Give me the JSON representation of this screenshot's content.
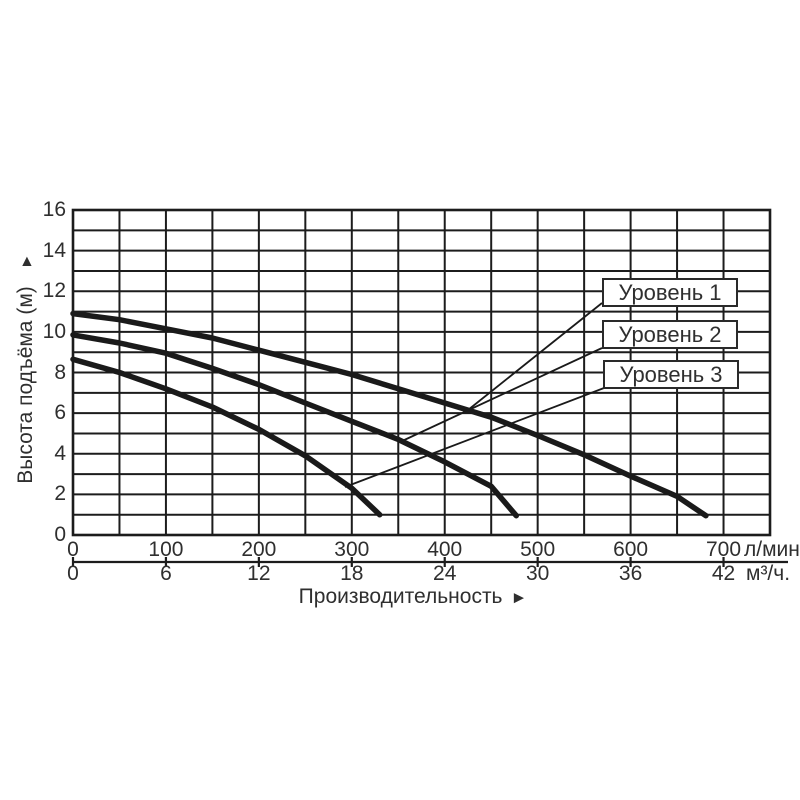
{
  "chart_data": {
    "type": "line",
    "title": "",
    "y_axis_title": {
      "text": "Высота подъёма (м)",
      "arrow": "▲"
    },
    "x_axis_title": {
      "text": "Производительность",
      "arrow": "►"
    },
    "y_axis": {
      "min": 0,
      "max": 16,
      "ticks": [
        16,
        14,
        12,
        10,
        8,
        6,
        4,
        2,
        0
      ],
      "minor_grid_step": 1
    },
    "x_axis_primary": {
      "unit": "л/мин.",
      "min": 0,
      "max": 750,
      "ticks": [
        0,
        100,
        200,
        300,
        400,
        500,
        600,
        700
      ],
      "grid_step": 50
    },
    "x_axis_secondary": {
      "unit": "м³/ч.",
      "ticks": [
        0,
        6,
        12,
        18,
        24,
        30,
        36,
        42
      ],
      "lmin_per_m3h": 16.6667
    },
    "grid": "on",
    "legend_position": "inside-right",
    "series": [
      {
        "name": "Уровень 1",
        "points": [
          [
            0,
            10.9
          ],
          [
            50,
            10.6
          ],
          [
            100,
            10.15
          ],
          [
            150,
            9.7
          ],
          [
            200,
            9.1
          ],
          [
            250,
            8.5
          ],
          [
            300,
            7.9
          ],
          [
            350,
            7.2
          ],
          [
            400,
            6.5
          ],
          [
            450,
            5.8
          ],
          [
            500,
            4.9
          ],
          [
            550,
            3.95
          ],
          [
            600,
            2.9
          ],
          [
            650,
            1.9
          ],
          [
            681,
            0.95
          ]
        ]
      },
      {
        "name": "Уровень 2",
        "points": [
          [
            0,
            9.85
          ],
          [
            50,
            9.45
          ],
          [
            100,
            8.95
          ],
          [
            150,
            8.2
          ],
          [
            200,
            7.4
          ],
          [
            250,
            6.5
          ],
          [
            300,
            5.6
          ],
          [
            350,
            4.7
          ],
          [
            400,
            3.6
          ],
          [
            450,
            2.4
          ],
          [
            477,
            0.95
          ]
        ]
      },
      {
        "name": "Уровень 3",
        "points": [
          [
            0,
            8.65
          ],
          [
            50,
            8.0
          ],
          [
            100,
            7.2
          ],
          [
            150,
            6.3
          ],
          [
            200,
            5.2
          ],
          [
            250,
            3.9
          ],
          [
            300,
            2.3
          ],
          [
            330,
            1.0
          ]
        ]
      }
    ],
    "colors": {
      "curve": "#1a1a1a",
      "grid": "#1c1c1c",
      "text": "#2f2f2f",
      "background": "#ffffff",
      "legend_border": "#2a2a2a"
    }
  }
}
